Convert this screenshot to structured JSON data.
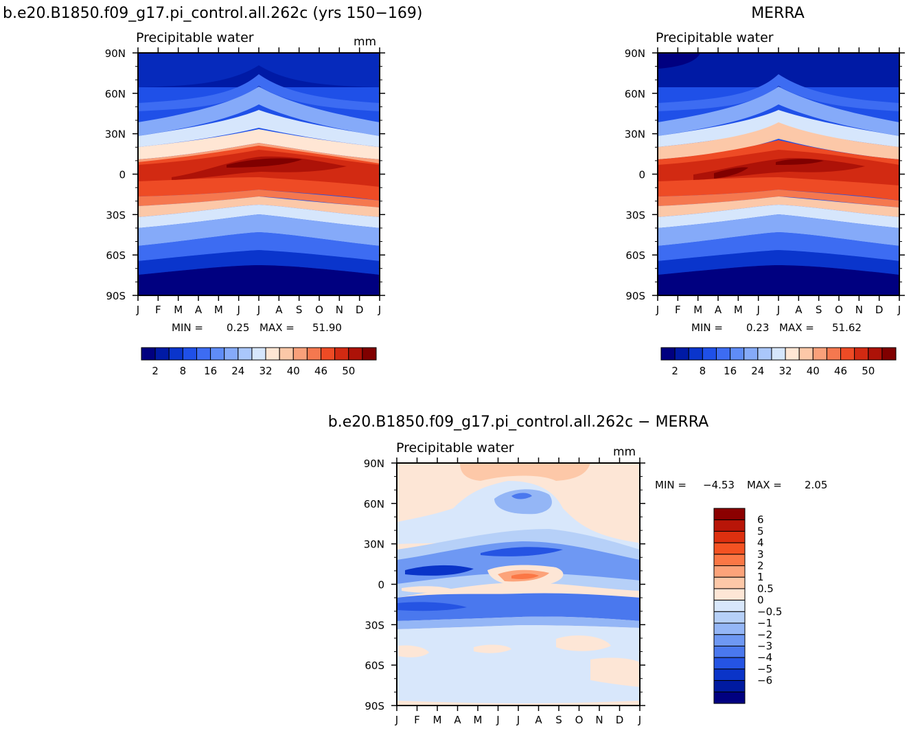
{
  "chart_data": [
    {
      "id": "model",
      "type": "heatmap",
      "title": "b.e20.B1850.f09_g17.pi_control.all.262c (yrs 150−169)",
      "subtitle": "Precipitable water",
      "units": "mm",
      "x_ticks": [
        "J",
        "F",
        "M",
        "A",
        "M",
        "J",
        "J",
        "A",
        "S",
        "O",
        "N",
        "D",
        "J"
      ],
      "y_ticks": [
        "90N",
        "60N",
        "30N",
        "0",
        "30S",
        "60S",
        "90S"
      ],
      "xlim": [
        0,
        12
      ],
      "ylim": [
        -90,
        90
      ],
      "min_label": "MIN =",
      "min_value": "0.25",
      "max_label": "MAX =",
      "max_value": "51.90",
      "colorbar": {
        "levels": [
          2,
          5,
          8,
          12,
          16,
          20,
          24,
          28,
          32,
          36,
          40,
          43,
          46,
          48,
          50
        ],
        "tick_labels": [
          "2",
          "8",
          "16",
          "24",
          "32",
          "40",
          "46",
          "50"
        ],
        "colors": [
          "#000080",
          "#001aa5",
          "#0a35cc",
          "#1f50e8",
          "#3d6cf2",
          "#5f8cf7",
          "#85aaf9",
          "#aac7fb",
          "#d6e6fc",
          "#ffe6d4",
          "#fcc8a8",
          "#f9a07a",
          "#f5784f",
          "#ee4b25",
          "#d22a12",
          "#ad1208",
          "#800000"
        ]
      }
    },
    {
      "id": "obs",
      "type": "heatmap",
      "title": "MERRA",
      "subtitle": "Precipitable water",
      "units": "",
      "x_ticks": [
        "J",
        "F",
        "M",
        "A",
        "M",
        "J",
        "J",
        "A",
        "S",
        "O",
        "N",
        "D",
        "J"
      ],
      "y_ticks": [
        "90N",
        "60N",
        "30N",
        "0",
        "30S",
        "60S",
        "90S"
      ],
      "xlim": [
        0,
        12
      ],
      "ylim": [
        -90,
        90
      ],
      "min_label": "MIN =",
      "min_value": "0.23",
      "max_label": "MAX =",
      "max_value": "51.62",
      "colorbar": {
        "levels": [
          2,
          5,
          8,
          12,
          16,
          20,
          24,
          28,
          32,
          36,
          40,
          43,
          46,
          48,
          50
        ],
        "tick_labels": [
          "2",
          "8",
          "16",
          "24",
          "32",
          "40",
          "46",
          "50"
        ],
        "colors": [
          "#000080",
          "#001aa5",
          "#0a35cc",
          "#1f50e8",
          "#3d6cf2",
          "#5f8cf7",
          "#85aaf9",
          "#aac7fb",
          "#d6e6fc",
          "#ffe6d4",
          "#fcc8a8",
          "#f9a07a",
          "#f5784f",
          "#ee4b25",
          "#d22a12",
          "#ad1208",
          "#800000"
        ]
      }
    },
    {
      "id": "diff",
      "type": "heatmap",
      "title": "b.e20.B1850.f09_g17.pi_control.all.262c − MERRA",
      "subtitle": "Precipitable water",
      "units": "mm",
      "x_ticks": [
        "J",
        "F",
        "M",
        "A",
        "M",
        "J",
        "J",
        "A",
        "S",
        "O",
        "N",
        "D",
        "J"
      ],
      "y_ticks": [
        "90N",
        "60N",
        "30N",
        "0",
        "30S",
        "60S",
        "90S"
      ],
      "xlim": [
        0,
        12
      ],
      "ylim": [
        -90,
        90
      ],
      "min_label": "MIN =",
      "min_value": "−4.53",
      "max_label": "MAX =",
      "max_value": "2.05",
      "colorbar": {
        "levels": [
          "6",
          "5",
          "4",
          "3",
          "2",
          "1",
          "0.5",
          "0",
          "−0.5",
          "−1",
          "−2",
          "−3",
          "−4",
          "−5",
          "−6"
        ],
        "colors": [
          "#8b0000",
          "#b81508",
          "#dd300f",
          "#f45222",
          "#fb7745",
          "#fca37a",
          "#fdc8a8",
          "#fde6d6",
          "#d8e7fb",
          "#b6d0f8",
          "#94b6f6",
          "#6e98f3",
          "#4a78ee",
          "#2554e3",
          "#0a34c8",
          "#001aa0",
          "#000080"
        ]
      }
    }
  ]
}
